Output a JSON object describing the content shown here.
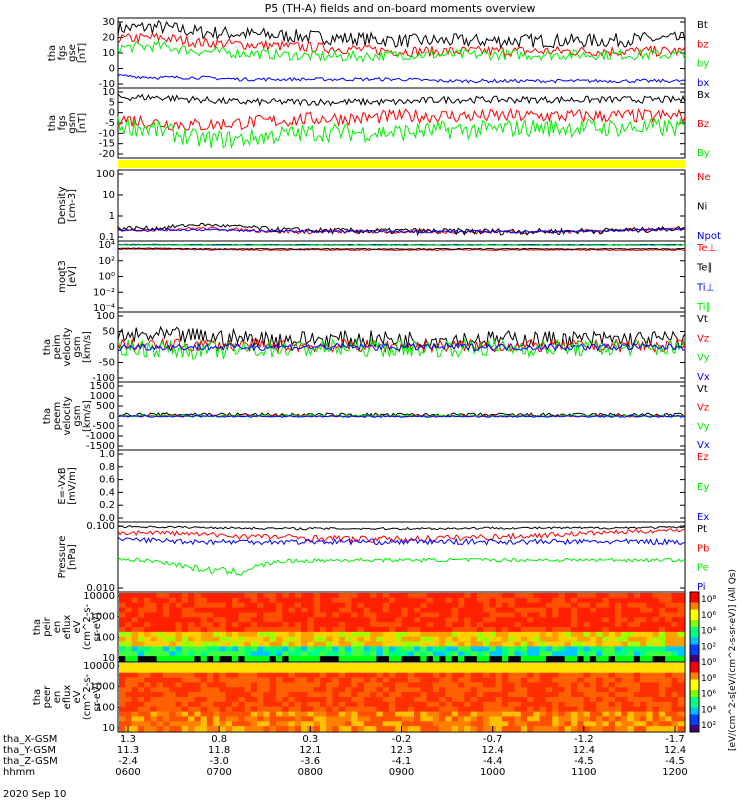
{
  "title": "P5 (TH-A) fields and on-board moments overview",
  "date_label": "2020 Sep 10",
  "colorbar": {
    "ticks": [
      "10⁸",
      "10⁶",
      "10⁴",
      "10²",
      "10⁰",
      "10⁸",
      "10⁶",
      "10⁴",
      "10²"
    ],
    "label": "[eV/(cm^2-s[eV/(cm^2-s-sr-eV)] (All Qs)"
  },
  "colors": {
    "black": "#000000",
    "red": "#ff0000",
    "green": "#00ee00",
    "blue": "#0000ff",
    "yellow": "#ffff00"
  },
  "chart_data": [
    {
      "id": "fgs-gse",
      "type": "line",
      "ylabel": [
        "tha",
        "fgs",
        "gse",
        "[nT]"
      ],
      "ylim": [
        -10,
        30
      ],
      "yticks": [
        "30",
        "20",
        "10",
        "0",
        "-10"
      ],
      "series": [
        {
          "name": "Bt",
          "color": "black",
          "base": [
            24,
            25,
            22,
            21,
            20,
            19,
            18,
            17,
            17,
            17,
            17,
            17,
            17,
            18,
            18
          ],
          "noise": 4
        },
        {
          "name": "bz",
          "color": "red",
          "base": [
            18,
            19,
            16,
            15,
            14,
            13,
            12,
            11,
            11,
            11,
            11,
            11,
            11,
            11,
            11
          ],
          "noise": 3
        },
        {
          "name": "by",
          "color": "green",
          "base": [
            13,
            14,
            11,
            10,
            9,
            8,
            8,
            9,
            9,
            9,
            9,
            9,
            9,
            9,
            9
          ],
          "noise": 3
        },
        {
          "name": "bx",
          "color": "blue",
          "base": [
            -3,
            -4,
            -4,
            -5,
            -5,
            -5,
            -5,
            -5,
            -6,
            -6,
            -6,
            -6,
            -6,
            -6,
            -6
          ],
          "noise": 1
        }
      ]
    },
    {
      "id": "fgs-gsm",
      "type": "line",
      "ylabel": [
        "tha",
        "fgs",
        "gsm",
        "[nT]"
      ],
      "ylim": [
        -20,
        10
      ],
      "yticks": [
        "10",
        "5",
        "0",
        "-5",
        "-10",
        "-15",
        "-20"
      ],
      "series": [
        {
          "name": "Bx",
          "color": "black",
          "base": [
            6,
            6,
            5,
            4,
            4,
            4,
            4,
            4,
            5,
            5,
            5,
            5,
            5,
            5,
            5
          ],
          "noise": 1.5
        },
        {
          "name": "Bz",
          "color": "red",
          "base": [
            -3,
            -5,
            -6,
            -5,
            -4,
            -3,
            -3,
            -2,
            -2,
            -2,
            -2,
            -2,
            -2,
            -2,
            -2
          ],
          "noise": 3
        },
        {
          "name": "By",
          "color": "green",
          "base": [
            -6,
            -8,
            -12,
            -12,
            -10,
            -9,
            -9,
            -9,
            -8,
            -8,
            -7,
            -7,
            -7,
            -7,
            -7
          ],
          "noise": 4
        }
      ]
    },
    {
      "id": "density",
      "type": "line",
      "ylabel": [
        "Density",
        "[cm-3]"
      ],
      "ylim": [
        0.1,
        100
      ],
      "yscale": "log",
      "yticks": [
        "100",
        "10",
        "1",
        "0.1"
      ],
      "series": [
        {
          "name": "Ne",
          "color": "red",
          "base": [
            0.3,
            0.3,
            0.35,
            0.3,
            0.25,
            0.25,
            0.25,
            0.25,
            0.25,
            0.25,
            0.25,
            0.25,
            0.28,
            0.3,
            0.35
          ],
          "noise": 0.05
        },
        {
          "name": "Ni",
          "color": "black",
          "base": [
            0.35,
            0.35,
            0.5,
            0.4,
            0.3,
            0.28,
            0.27,
            0.27,
            0.26,
            0.26,
            0.26,
            0.26,
            0.28,
            0.3,
            0.35
          ],
          "noise": 0.08
        },
        {
          "name": "Npot",
          "color": "blue",
          "base": [
            0.3,
            0.3,
            0.3,
            0.28,
            0.26,
            0.25,
            0.25,
            0.25,
            0.25,
            0.25,
            0.25,
            0.25,
            0.27,
            0.3,
            0.33
          ],
          "noise": 0.03
        }
      ]
    },
    {
      "id": "temperature",
      "type": "line",
      "ylabel": [
        "moqt3",
        "[eV]"
      ],
      "ylim": [
        0.0001,
        10000
      ],
      "yscale": "log",
      "yticks": [
        "10⁴",
        "10²",
        "10⁰",
        "10⁻²",
        "10⁻⁴"
      ],
      "series": [
        {
          "name": "Te⊥",
          "color": "red",
          "base": [
            1200,
            1200,
            1100,
            1000,
            1000,
            1000,
            1000,
            1000,
            1000,
            1000,
            1000,
            1000,
            1000,
            1000,
            1000
          ],
          "noise": 150
        },
        {
          "name": "Te∥",
          "color": "black",
          "base": [
            1500,
            1500,
            1300,
            1300,
            1300,
            1300,
            1300,
            1300,
            1300,
            1300,
            1300,
            1300,
            1300,
            1300,
            1300
          ],
          "noise": 150
        },
        {
          "name": "Ti⊥",
          "color": "blue",
          "base": [
            4000,
            4000,
            3800,
            3800,
            3800,
            3800,
            3800,
            3800,
            3800,
            3800,
            3800,
            3800,
            3800,
            3800,
            3800
          ],
          "noise": 300
        },
        {
          "name": "Ti∥",
          "color": "green",
          "base": [
            3500,
            3500,
            3300,
            3300,
            3300,
            3300,
            3300,
            3300,
            3300,
            3300,
            3300,
            3300,
            3300,
            3300,
            3300
          ],
          "noise": 300
        }
      ]
    },
    {
      "id": "peim-velocity",
      "type": "line",
      "ylabel": [
        "tha",
        "peim",
        "velocity",
        "gsm",
        "[km/s]"
      ],
      "ylim": [
        -100,
        100
      ],
      "yticks": [
        "100",
        "50",
        "0",
        "-50",
        "-100"
      ],
      "series": [
        {
          "name": "Vt",
          "color": "black",
          "base": [
            30,
            32,
            30,
            25,
            22,
            22,
            22,
            22,
            22,
            22,
            22,
            22,
            22,
            22,
            22
          ],
          "noise": 25
        },
        {
          "name": "Vz",
          "color": "red",
          "base": [
            5,
            5,
            5,
            5,
            3,
            3,
            3,
            3,
            3,
            3,
            3,
            3,
            3,
            3,
            3
          ],
          "noise": 18
        },
        {
          "name": "Vy",
          "color": "green",
          "base": [
            0,
            -5,
            -10,
            -8,
            -5,
            -3,
            -3,
            -3,
            -3,
            -3,
            -3,
            -3,
            -3,
            -3,
            -3
          ],
          "noise": 25
        },
        {
          "name": "Vx",
          "color": "blue",
          "base": [
            0,
            0,
            0,
            0,
            0,
            0,
            0,
            0,
            0,
            0,
            0,
            0,
            0,
            0,
            0
          ],
          "noise": 10
        }
      ]
    },
    {
      "id": "peem-velocity",
      "type": "line",
      "ylabel": [
        "tha",
        "peem",
        "velocity",
        "gsm",
        "[km/s]"
      ],
      "ylim": [
        -1500,
        1500
      ],
      "yticks": [
        "1500",
        "1000",
        "500",
        "0",
        "-500",
        "-1000",
        "-1500"
      ],
      "series": [
        {
          "name": "Vt",
          "color": "black",
          "base": [
            50,
            60,
            80,
            60,
            50,
            50,
            50,
            50,
            50,
            50,
            50,
            50,
            50,
            50,
            50
          ],
          "noise": 80
        },
        {
          "name": "Vz",
          "color": "red",
          "base": [
            0,
            0,
            0,
            0,
            0,
            0,
            0,
            0,
            0,
            0,
            0,
            0,
            0,
            0,
            0
          ],
          "noise": 40
        },
        {
          "name": "Vy",
          "color": "green",
          "base": [
            0,
            0,
            0,
            0,
            0,
            0,
            0,
            0,
            0,
            0,
            0,
            0,
            0,
            0,
            0
          ],
          "noise": 40
        },
        {
          "name": "Vx",
          "color": "blue",
          "base": [
            -20,
            -20,
            -20,
            -20,
            -20,
            -20,
            -20,
            -20,
            -20,
            -20,
            -20,
            -20,
            -20,
            -20,
            -20
          ],
          "noise": 40
        }
      ]
    },
    {
      "id": "e-field",
      "type": "line",
      "ylabel": [
        "E=-VxB",
        "[mV/m]"
      ],
      "ylim": [
        0,
        1
      ],
      "yticks": [
        "1.0",
        "0.8",
        "0.6",
        "0.4",
        "0.2",
        "0.0"
      ],
      "series": [
        {
          "name": "Ez",
          "color": "red",
          "base": [],
          "noise": 0
        },
        {
          "name": "Ey",
          "color": "green",
          "base": [],
          "noise": 0
        },
        {
          "name": "Ex",
          "color": "blue",
          "base": [],
          "noise": 0
        }
      ]
    },
    {
      "id": "pressure",
      "type": "line",
      "ylabel": [
        "Pressure",
        "[nPa]"
      ],
      "ylim": [
        0.004,
        0.4
      ],
      "yscale": "log",
      "yticks": [
        "0.100",
        "0.010"
      ],
      "series": [
        {
          "name": "Pt",
          "color": "black",
          "base": [
            0.3,
            0.29,
            0.28,
            0.27,
            0.26,
            0.26,
            0.26,
            0.26,
            0.26,
            0.27,
            0.27,
            0.27,
            0.27,
            0.28,
            0.28
          ],
          "noise": 0.02
        },
        {
          "name": "Pb",
          "color": "red",
          "base": [
            0.2,
            0.2,
            0.18,
            0.16,
            0.15,
            0.14,
            0.13,
            0.13,
            0.14,
            0.15,
            0.16,
            0.18,
            0.2,
            0.22,
            0.24
          ],
          "noise": 0.03
        },
        {
          "name": "Pe",
          "color": "green",
          "base": [
            0.035,
            0.03,
            0.018,
            0.015,
            0.03,
            0.032,
            0.033,
            0.033,
            0.033,
            0.033,
            0.033,
            0.033,
            0.033,
            0.033,
            0.033
          ],
          "noise": 0.004
        },
        {
          "name": "Pi",
          "color": "blue",
          "base": [
            0.13,
            0.12,
            0.11,
            0.11,
            0.11,
            0.11,
            0.11,
            0.11,
            0.11,
            0.11,
            0.11,
            0.11,
            0.11,
            0.11,
            0.11
          ],
          "noise": 0.02
        }
      ]
    },
    {
      "id": "peir-spectrogram",
      "type": "heatmap",
      "ylabel": [
        "tha",
        "peir",
        "en",
        "eflux",
        "eV",
        "(cm^2-s-",
        "sr-eV)"
      ],
      "ylim": [
        5,
        25000
      ],
      "yscale": "log",
      "yticks": [
        "10000",
        "1000",
        "100",
        "10"
      ]
    },
    {
      "id": "peer-spectrogram",
      "type": "heatmap",
      "ylabel": [
        "tha",
        "peer",
        "en",
        "eflux",
        "eV",
        "(cm^2-s-",
        "sr-eV)"
      ],
      "ylim": [
        5,
        25000
      ],
      "yscale": "log",
      "yticks": [
        "10000",
        "1000",
        "100",
        "10"
      ]
    }
  ],
  "x_axis": {
    "row_labels": [
      "tha_X-GSM",
      "tha_Y-GSM",
      "tha_Z-GSM",
      "hhmm"
    ],
    "columns": [
      {
        "x": "1.3",
        "y": "11.3",
        "z": "-2.4",
        "t": "0600"
      },
      {
        "x": "0.8",
        "y": "11.8",
        "z": "-3.0",
        "t": "0700"
      },
      {
        "x": "0.3",
        "y": "12.1",
        "z": "-3.6",
        "t": "0800"
      },
      {
        "x": "-0.2",
        "y": "12.3",
        "z": "-4.1",
        "t": "0900"
      },
      {
        "x": "-0.7",
        "y": "12.4",
        "z": "-4.4",
        "t": "1000"
      },
      {
        "x": "-1.2",
        "y": "12.4",
        "z": "-4.5",
        "t": "1100"
      },
      {
        "x": "-1.7",
        "y": "12.4",
        "z": "-4.5",
        "t": "1200"
      }
    ]
  }
}
